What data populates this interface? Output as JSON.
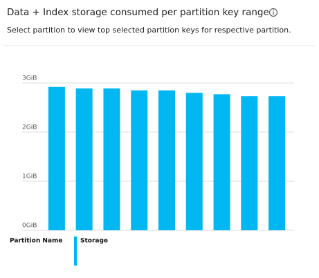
{
  "chart_data": {
    "type": "bar",
    "title": "Data + Index storage consumed per partition key range",
    "subtitle": "Select partition to view top selected partition keys for respective partition.",
    "x_label": "Partition Name",
    "categories": [
      null,
      null,
      null,
      null,
      null,
      null,
      null,
      null,
      null
    ],
    "series": [
      {
        "name": "Storage",
        "color": "#00b7f1",
        "values": [
          2.92,
          2.89,
          2.89,
          2.85,
          2.85,
          2.8,
          2.77,
          2.73,
          2.73
        ]
      }
    ],
    "ylim": [
      0,
      3
    ],
    "yticks": [
      {
        "value": 0,
        "label": "0GiB"
      },
      {
        "value": 1,
        "label": "1GiB"
      },
      {
        "value": 2,
        "label": "2GiB"
      },
      {
        "value": 3,
        "label": "3GiB"
      }
    ],
    "grid": true
  }
}
